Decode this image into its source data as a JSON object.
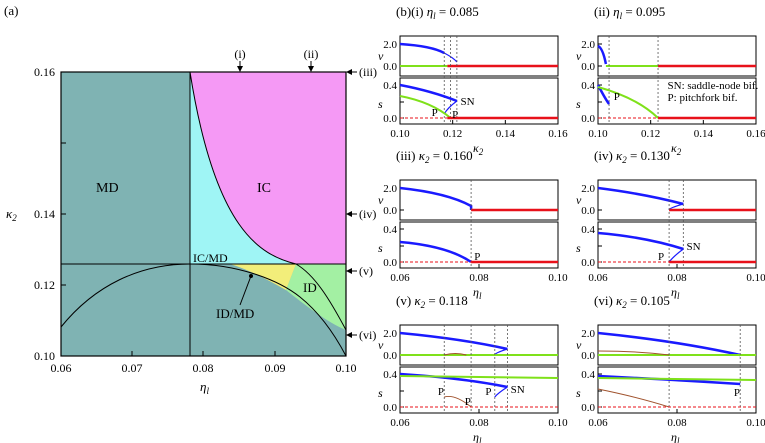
{
  "figure_label": "(a)",
  "phase": {
    "xticks": [
      "0.06",
      "0.07",
      "0.08",
      "0.09",
      "0.10"
    ],
    "yticks": [
      "0.10",
      "0.12",
      "0.14",
      "0.16"
    ],
    "xlabel_sym": "η",
    "xlabel_sub": "l",
    "ylabel_sym": "κ",
    "ylabel_sub": "2",
    "regions": {
      "md": "MD",
      "ic": "IC",
      "icmd": "IC/MD",
      "id": "ID",
      "idmd": "ID/MD"
    },
    "markers": [
      "(i)",
      "(ii)",
      "(iii)",
      "(iv)",
      "(v)",
      "(vi)"
    ],
    "colors": {
      "md": "#7fb3b3",
      "ic": "#f599f5",
      "icmd": "#9ff5f5",
      "id": "#a3f0a3",
      "idmd": "#f2ee7a"
    }
  },
  "panels": [
    {
      "label": "(b)(i)",
      "param_sym": "η",
      "param_sub": "l",
      "param_value": "0.085",
      "xticks": [
        "0.10",
        "0.12",
        "0.14",
        "0.16"
      ],
      "xlabel_sym": "κ",
      "xlabel_sub": "2"
    },
    {
      "label": "(ii)",
      "param_sym": "η",
      "param_sub": "l",
      "param_value": "0.095",
      "xticks": [
        "0.10",
        "0.12",
        "0.14",
        "0.16"
      ],
      "xlabel_sym": "κ",
      "xlabel_sub": "2"
    },
    {
      "label": "(iii)",
      "param_sym": "κ",
      "param_sub": "2",
      "param_value": "0.160",
      "xticks": [
        "0.06",
        "0.08",
        "0.10"
      ],
      "xlabel_sym": "η",
      "xlabel_sub": "l"
    },
    {
      "label": "(iv)",
      "param_sym": "κ",
      "param_sub": "2",
      "param_value": "0.130",
      "xticks": [
        "0.06",
        "0.08",
        "0.10"
      ],
      "xlabel_sym": "η",
      "xlabel_sub": "l"
    },
    {
      "label": "(v)",
      "param_sym": "κ",
      "param_sub": "2",
      "param_value": "0.118",
      "xticks": [
        "0.06",
        "0.08",
        "0.10"
      ],
      "xlabel_sym": "η",
      "xlabel_sub": "l"
    },
    {
      "label": "(vi)",
      "param_sym": "κ",
      "param_sub": "2",
      "param_value": "0.105",
      "xticks": [
        "0.06",
        "0.08",
        "0.10"
      ],
      "xlabel_sym": "η",
      "xlabel_sub": "l"
    }
  ],
  "v_axis": {
    "label": "v",
    "ticks": [
      "2.0",
      "0.0"
    ]
  },
  "s_axis": {
    "label": "s",
    "ticks": [
      "0.4",
      "0.2",
      "0.0"
    ]
  },
  "annotations": {
    "sn": "SN",
    "p": "P",
    "legend_sn": "SN: saddle-node bif.",
    "legend_p": "P: pitchfork bif."
  },
  "line_colors": {
    "stable_blue": "#1a1aff",
    "red": "#e8111a",
    "green": "#7fe11a",
    "brown": "#a0522d"
  }
}
